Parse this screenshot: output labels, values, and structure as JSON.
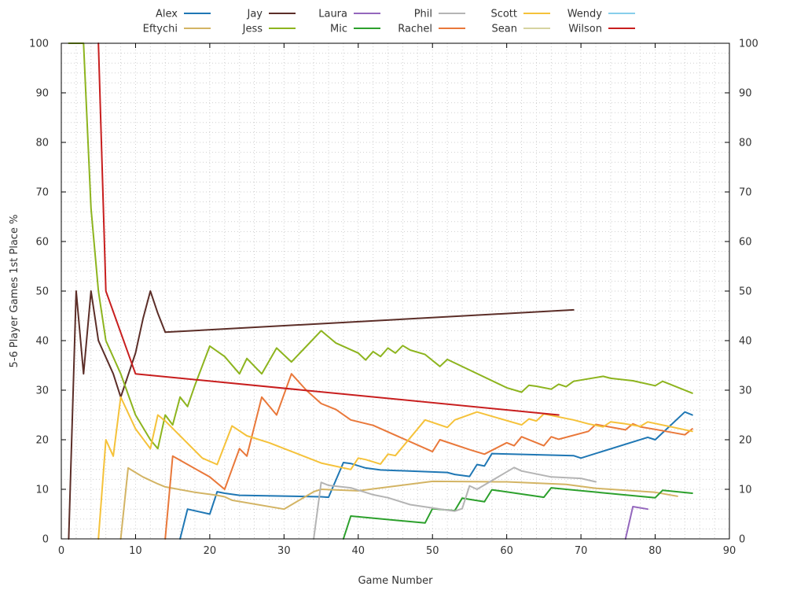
{
  "chart_data": {
    "type": "line",
    "title": "",
    "xlabel": "Game Number",
    "ylabel": "5-6 Player Games 1st Place %",
    "xlim": [
      0,
      90
    ],
    "ylim": [
      0,
      100
    ],
    "x_ticks": [
      0,
      10,
      20,
      30,
      40,
      50,
      60,
      70,
      80,
      90
    ],
    "y_ticks": [
      0,
      10,
      20,
      30,
      40,
      50,
      60,
      70,
      80,
      90,
      100
    ],
    "y_axis_mirrored_right": true,
    "grid": true,
    "legend_position": "top",
    "series": [
      {
        "name": "Alex",
        "color": "#1f77b4",
        "points": [
          [
            16,
            0
          ],
          [
            17,
            6
          ],
          [
            20,
            5
          ],
          [
            21,
            9.5
          ],
          [
            22,
            9.2
          ],
          [
            24,
            8.8
          ],
          [
            35,
            8.5
          ],
          [
            36,
            8.4
          ],
          [
            38,
            15.4
          ],
          [
            39,
            15.2
          ],
          [
            41,
            14.3
          ],
          [
            43,
            13.9
          ],
          [
            52,
            13.4
          ],
          [
            53,
            13
          ],
          [
            55,
            12.6
          ],
          [
            56,
            15
          ],
          [
            57,
            14.7
          ],
          [
            58,
            17.2
          ],
          [
            69,
            16.8
          ],
          [
            70,
            16.3
          ],
          [
            79,
            20.5
          ],
          [
            80,
            20
          ],
          [
            84,
            25.6
          ],
          [
            85,
            25
          ]
        ]
      },
      {
        "name": "Eftychi",
        "color": "#d3b464",
        "points": [
          [
            8,
            0
          ],
          [
            9,
            14.3
          ],
          [
            10,
            13.4
          ],
          [
            11,
            12.5
          ],
          [
            12,
            11.8
          ],
          [
            13,
            11.1
          ],
          [
            14,
            10.5
          ],
          [
            18,
            9.4
          ],
          [
            21,
            8.8
          ],
          [
            22,
            8.5
          ],
          [
            23,
            7.8
          ],
          [
            30,
            6
          ],
          [
            34,
            9.5
          ],
          [
            35,
            10
          ],
          [
            40,
            9.7
          ],
          [
            50,
            11.6
          ],
          [
            60,
            11.5
          ],
          [
            68,
            11
          ],
          [
            72,
            10.2
          ],
          [
            80,
            9.4
          ],
          [
            83,
            8.6
          ]
        ]
      },
      {
        "name": "Jay",
        "color": "#5c2e28",
        "points": [
          [
            1,
            0
          ],
          [
            2,
            50
          ],
          [
            3,
            33.3
          ],
          [
            4,
            50
          ],
          [
            5,
            40
          ],
          [
            7,
            33.3
          ],
          [
            8,
            28.6
          ],
          [
            10,
            37.5
          ],
          [
            11,
            44.4
          ],
          [
            12,
            50
          ],
          [
            13,
            45.5
          ],
          [
            14,
            41.7
          ],
          [
            69,
            46.2
          ]
        ]
      },
      {
        "name": "Jess",
        "color": "#8db41e",
        "points": [
          [
            1,
            100
          ],
          [
            3,
            100
          ],
          [
            4,
            66.7
          ],
          [
            5,
            50
          ],
          [
            6,
            40
          ],
          [
            8,
            33.3
          ],
          [
            10,
            25
          ],
          [
            12,
            20
          ],
          [
            13,
            18.2
          ],
          [
            14,
            25
          ],
          [
            15,
            23
          ],
          [
            16,
            28.6
          ],
          [
            17,
            26.7
          ],
          [
            18,
            31
          ],
          [
            20,
            38.9
          ],
          [
            22,
            36.8
          ],
          [
            24,
            33.3
          ],
          [
            25,
            36.4
          ],
          [
            27,
            33.3
          ],
          [
            29,
            38.5
          ],
          [
            31,
            35.7
          ],
          [
            35,
            42
          ],
          [
            37,
            39.5
          ],
          [
            40,
            37.5
          ],
          [
            41,
            36.1
          ],
          [
            42,
            37.8
          ],
          [
            43,
            36.8
          ],
          [
            44,
            38.5
          ],
          [
            45,
            37.5
          ],
          [
            46,
            39
          ],
          [
            47,
            38.1
          ],
          [
            49,
            37.2
          ],
          [
            51,
            34.8
          ],
          [
            52,
            36.2
          ],
          [
            60,
            30.5
          ],
          [
            62,
            29.6
          ],
          [
            63,
            31
          ],
          [
            64,
            30.8
          ],
          [
            66,
            30.2
          ],
          [
            67,
            31.2
          ],
          [
            68,
            30.7
          ],
          [
            69,
            31.8
          ],
          [
            73,
            32.8
          ],
          [
            74,
            32.4
          ],
          [
            77,
            31.9
          ],
          [
            80,
            30.9
          ],
          [
            81,
            31.8
          ],
          [
            85,
            29.4
          ]
        ]
      },
      {
        "name": "Laura",
        "color": "#9467bd",
        "points": [
          [
            76,
            0
          ],
          [
            77,
            6.5
          ],
          [
            79,
            6
          ]
        ]
      },
      {
        "name": "Mic",
        "color": "#2ca02c",
        "points": [
          [
            38,
            0
          ],
          [
            39,
            4.6
          ],
          [
            49,
            3.2
          ],
          [
            50,
            6.1
          ],
          [
            53,
            5.7
          ],
          [
            54,
            8.2
          ],
          [
            57,
            7.5
          ],
          [
            58,
            9.9
          ],
          [
            65,
            8.4
          ],
          [
            66,
            10.3
          ],
          [
            68,
            10
          ],
          [
            80,
            8.3
          ],
          [
            81,
            9.8
          ],
          [
            85,
            9.2
          ]
        ]
      },
      {
        "name": "Phil",
        "color": "#b4b4b4",
        "points": [
          [
            34,
            0
          ],
          [
            35,
            11.4
          ],
          [
            36,
            10.8
          ],
          [
            39,
            10.3
          ],
          [
            42,
            8.9
          ],
          [
            44,
            8.3
          ],
          [
            47,
            6.9
          ],
          [
            52,
            5.8
          ],
          [
            53,
            5.6
          ],
          [
            54,
            6.1
          ],
          [
            55,
            10.7
          ],
          [
            56,
            10
          ],
          [
            61,
            14.4
          ],
          [
            62,
            13.7
          ],
          [
            66,
            12.5
          ],
          [
            70,
            12.2
          ],
          [
            72,
            11.5
          ]
        ]
      },
      {
        "name": "Rachel",
        "color": "#e9783a",
        "points": [
          [
            14,
            0
          ],
          [
            15,
            16.7
          ],
          [
            20,
            12.5
          ],
          [
            22,
            10
          ],
          [
            24,
            18.2
          ],
          [
            25,
            16.7
          ],
          [
            27,
            28.6
          ],
          [
            29,
            25
          ],
          [
            31,
            33.3
          ],
          [
            33,
            30
          ],
          [
            35,
            27.3
          ],
          [
            37,
            26.1
          ],
          [
            39,
            24
          ],
          [
            42,
            22.9
          ],
          [
            50,
            17.6
          ],
          [
            51,
            20
          ],
          [
            55,
            18
          ],
          [
            57,
            17.1
          ],
          [
            60,
            19.4
          ],
          [
            61,
            18.8
          ],
          [
            62,
            20.6
          ],
          [
            65,
            18.8
          ],
          [
            66,
            20.6
          ],
          [
            67,
            20.1
          ],
          [
            71,
            21.7
          ],
          [
            72,
            23.1
          ],
          [
            76,
            22
          ],
          [
            77,
            23.2
          ],
          [
            78,
            22.6
          ],
          [
            80,
            22.1
          ],
          [
            84,
            21
          ],
          [
            85,
            22.2
          ]
        ]
      },
      {
        "name": "Scott",
        "color": "#f5c23a",
        "points": [
          [
            5,
            0
          ],
          [
            6,
            20
          ],
          [
            7,
            16.7
          ],
          [
            8,
            28.6
          ],
          [
            10,
            22.2
          ],
          [
            12,
            18.2
          ],
          [
            13,
            25
          ],
          [
            14,
            23.8
          ],
          [
            19,
            16.3
          ],
          [
            21,
            15
          ],
          [
            23,
            22.8
          ],
          [
            25,
            20.8
          ],
          [
            28,
            19.4
          ],
          [
            35,
            15.3
          ],
          [
            39,
            14
          ],
          [
            40,
            16.3
          ],
          [
            41,
            16
          ],
          [
            43,
            15.1
          ],
          [
            44,
            17.1
          ],
          [
            45,
            16.8
          ],
          [
            49,
            24
          ],
          [
            52,
            22.5
          ],
          [
            53,
            24
          ],
          [
            56,
            25.6
          ],
          [
            62,
            23
          ],
          [
            63,
            24.2
          ],
          [
            64,
            23.8
          ],
          [
            65,
            25.2
          ],
          [
            69,
            24
          ],
          [
            71,
            23.2
          ],
          [
            73,
            22.6
          ],
          [
            74,
            23.6
          ],
          [
            76,
            23.2
          ],
          [
            78,
            22.7
          ],
          [
            79,
            23.6
          ],
          [
            85,
            21.7
          ]
        ]
      },
      {
        "name": "Sean",
        "color": "#d6d3a0",
        "points": [
          [
            85,
            0
          ]
        ]
      },
      {
        "name": "Wendy",
        "color": "#87ceeb",
        "points": [
          [
            85,
            0
          ]
        ]
      },
      {
        "name": "Wilson",
        "color": "#c81e1e",
        "points": [
          [
            5,
            100
          ],
          [
            6,
            50
          ],
          [
            10,
            33.3
          ],
          [
            67,
            25
          ]
        ]
      }
    ]
  }
}
